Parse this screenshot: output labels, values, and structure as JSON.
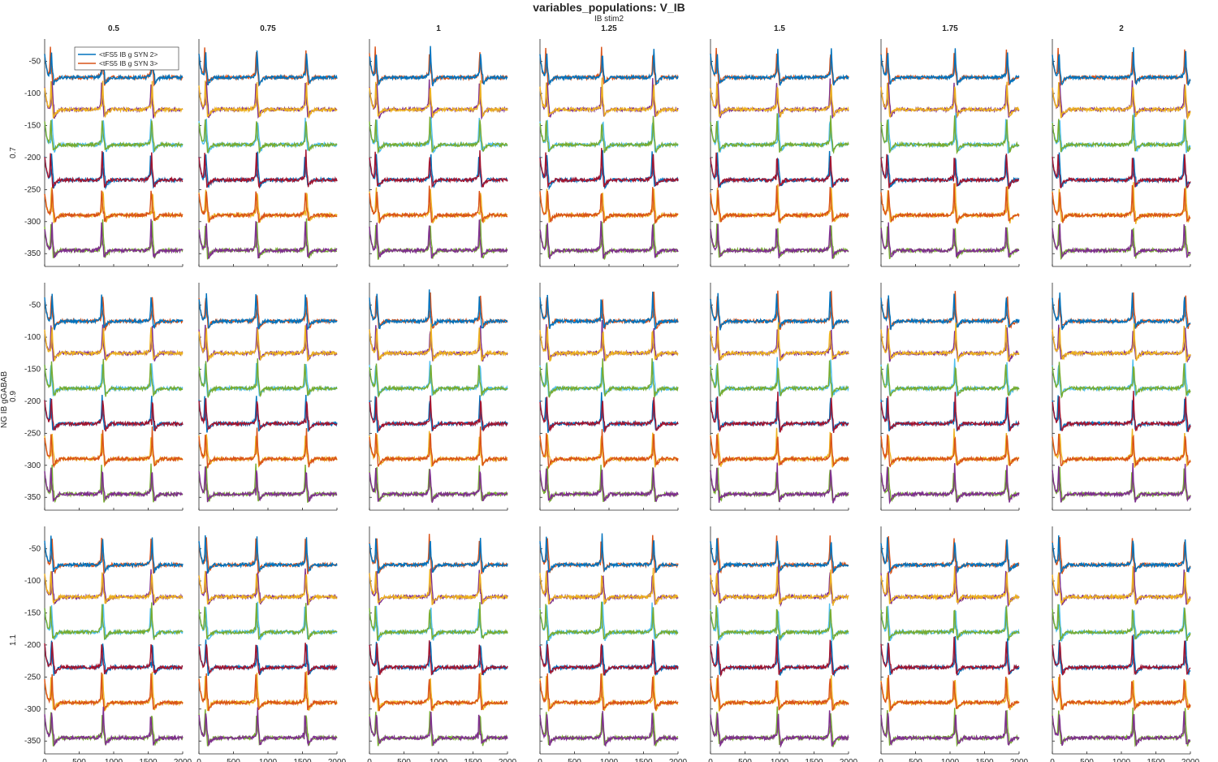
{
  "figure": {
    "title": "variables_populations: V_IB",
    "col_axis_label": "IB stim2",
    "row_axis_label": "NG IB gGABAB"
  },
  "colors": {
    "blue": "#0072BD",
    "orange": "#D95319",
    "yellow": "#EDB120",
    "purple": "#7E2F8E",
    "green": "#77AC30",
    "cyan": "#4DBEEE",
    "darkred": "#A2142F"
  },
  "chart_data": {
    "type": "line",
    "layout": "small-multiples grid, 3 rows x 7 columns",
    "columns": [
      "0.5",
      "0.75",
      "1",
      "1.25",
      "1.5",
      "1.75",
      "2"
    ],
    "rows": [
      "0.7",
      "0.9",
      "1.1"
    ],
    "xlim": [
      0,
      2000
    ],
    "ylim": [
      -370,
      -15
    ],
    "xticks": [
      "0",
      "500",
      "1000",
      "1500",
      "2000"
    ],
    "yticks": [
      "-50",
      "-100",
      "-150",
      "-200",
      "-250",
      "-300",
      "-350"
    ],
    "ytick_values": [
      -50,
      -100,
      -150,
      -200,
      -250,
      -300,
      -350
    ],
    "legend": {
      "placement": "top-left of first panel",
      "entries": [
        "<tFS5 IB g SYN 2>",
        "<tFS5 IB g SYN 3>"
      ]
    },
    "trace_offsets": [
      -75,
      -125,
      -180,
      -235,
      -290,
      -345
    ],
    "trace_colors": [
      [
        "orange",
        "blue"
      ],
      [
        "purple",
        "yellow"
      ],
      [
        "cyan",
        "green"
      ],
      [
        "blue",
        "darkred"
      ],
      [
        "yellow",
        "orange"
      ],
      [
        "green",
        "purple"
      ]
    ],
    "spike_times_by_column": [
      [
        80,
        820,
        1530
      ],
      [
        80,
        820,
        1530
      ],
      [
        80,
        860,
        1580
      ],
      [
        80,
        880,
        1620
      ],
      [
        80,
        950,
        1720
      ],
      [
        80,
        1050,
        1800
      ],
      [
        80,
        1150,
        1900
      ]
    ]
  },
  "panels": [
    {
      "row": 0,
      "col": 0,
      "title": "0.5"
    },
    {
      "row": 0,
      "col": 1,
      "title": "0.75"
    },
    {
      "row": 0,
      "col": 2,
      "title": "1"
    },
    {
      "row": 0,
      "col": 3,
      "title": "1.25"
    },
    {
      "row": 0,
      "col": 4,
      "title": "1.5"
    },
    {
      "row": 0,
      "col": 5,
      "title": "1.75"
    },
    {
      "row": 0,
      "col": 6,
      "title": "2"
    }
  ]
}
